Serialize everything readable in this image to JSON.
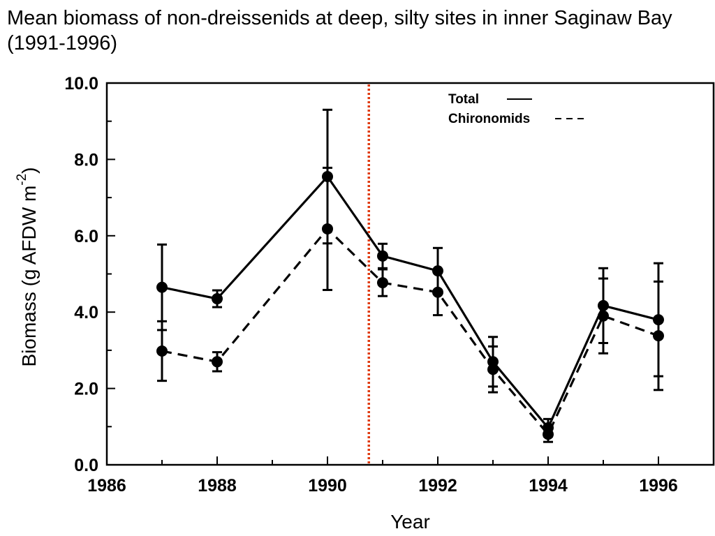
{
  "chart_data": {
    "type": "line",
    "title": "Mean biomass of non-dreissenids at deep, silty sites in inner Saginaw Bay (1991-1996)",
    "xlabel": "Year",
    "ylabel": "Biomass (g AFDW m",
    "ylabel_superscript": "-2",
    "ylabel_suffix": ")",
    "xlim": [
      1986,
      1997
    ],
    "ylim": [
      0,
      10
    ],
    "x_ticks": [
      1986,
      1988,
      1990,
      1992,
      1994,
      1996
    ],
    "x_tick_labels": [
      "1986",
      "1988",
      "1990",
      "1992",
      "1994",
      "1996"
    ],
    "y_ticks": [
      0,
      2,
      4,
      6,
      8,
      10
    ],
    "y_tick_labels": [
      "0.0",
      "2.0",
      "4.0",
      "6.0",
      "8.0",
      "10.0"
    ],
    "grid": false,
    "legend_placement": "top-right",
    "reference_line": {
      "x": 1990.75,
      "color": "#e03a10",
      "style": "dotted"
    },
    "series": [
      {
        "name": "Total",
        "line_style": "solid",
        "color": "#000000",
        "x": [
          1987,
          1988,
          1990,
          1991,
          1992,
          1993,
          1994,
          1995,
          1996
        ],
        "y": [
          4.65,
          4.35,
          7.55,
          5.47,
          5.08,
          2.7,
          0.97,
          4.17,
          3.8
        ],
        "error": [
          1.12,
          0.22,
          1.75,
          0.32,
          0.6,
          0.65,
          0.23,
          0.98,
          1.48
        ]
      },
      {
        "name": "Chironomids",
        "line_style": "dashed",
        "color": "#000000",
        "x": [
          1987,
          1988,
          1990,
          1991,
          1992,
          1993,
          1994,
          1995,
          1996
        ],
        "y": [
          2.98,
          2.7,
          6.18,
          4.77,
          4.52,
          2.5,
          0.8,
          3.9,
          3.38
        ],
        "error": [
          0.78,
          0.25,
          1.6,
          0.35,
          0.6,
          0.6,
          0.2,
          0.98,
          1.42
        ]
      }
    ]
  }
}
